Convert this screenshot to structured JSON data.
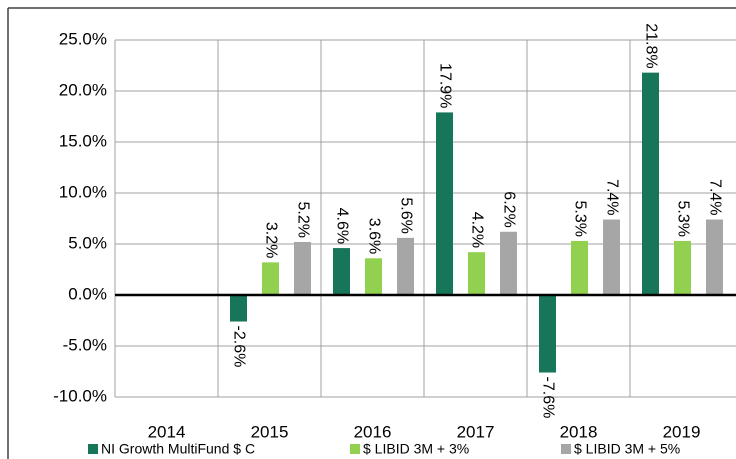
{
  "chart_data": {
    "type": "bar",
    "categories": [
      "2014",
      "2015",
      "2016",
      "2017",
      "2018",
      "2019"
    ],
    "series": [
      {
        "name": "NI Growth MultiFund $ C",
        "color": "#17765a",
        "values": [
          null,
          -2.6,
          4.6,
          17.9,
          -7.6,
          21.8
        ],
        "value_labels": [
          null,
          "-2.6%",
          "4.6%",
          "17.9%",
          "-7.6%",
          "21.8%"
        ]
      },
      {
        "name": "$ LIBID 3M + 3%",
        "color": "#92d050",
        "values": [
          null,
          3.2,
          3.6,
          4.2,
          5.3,
          5.3
        ],
        "value_labels": [
          null,
          "3.2%",
          "3.6%",
          "4.2%",
          "5.3%",
          "5.3%"
        ]
      },
      {
        "name": "$ LIBID 3M + 5%",
        "color": "#a6a6a6",
        "values": [
          null,
          5.2,
          5.6,
          6.2,
          7.4,
          7.4
        ],
        "value_labels": [
          null,
          "5.2%",
          "5.6%",
          "6.2%",
          "7.4%",
          "7.4%"
        ]
      }
    ],
    "ylim": [
      -10,
      25
    ],
    "yticks": [
      {
        "value": -10,
        "label": "-10.0%"
      },
      {
        "value": -5,
        "label": "-5.0%"
      },
      {
        "value": 0,
        "label": "0.0%"
      },
      {
        "value": 5,
        "label": "5.0%"
      },
      {
        "value": 10,
        "label": "10.0%"
      },
      {
        "value": 15,
        "label": "15.0%"
      },
      {
        "value": 20,
        "label": "20.0%"
      },
      {
        "value": 25,
        "label": "25.0%"
      }
    ],
    "grid": true
  }
}
